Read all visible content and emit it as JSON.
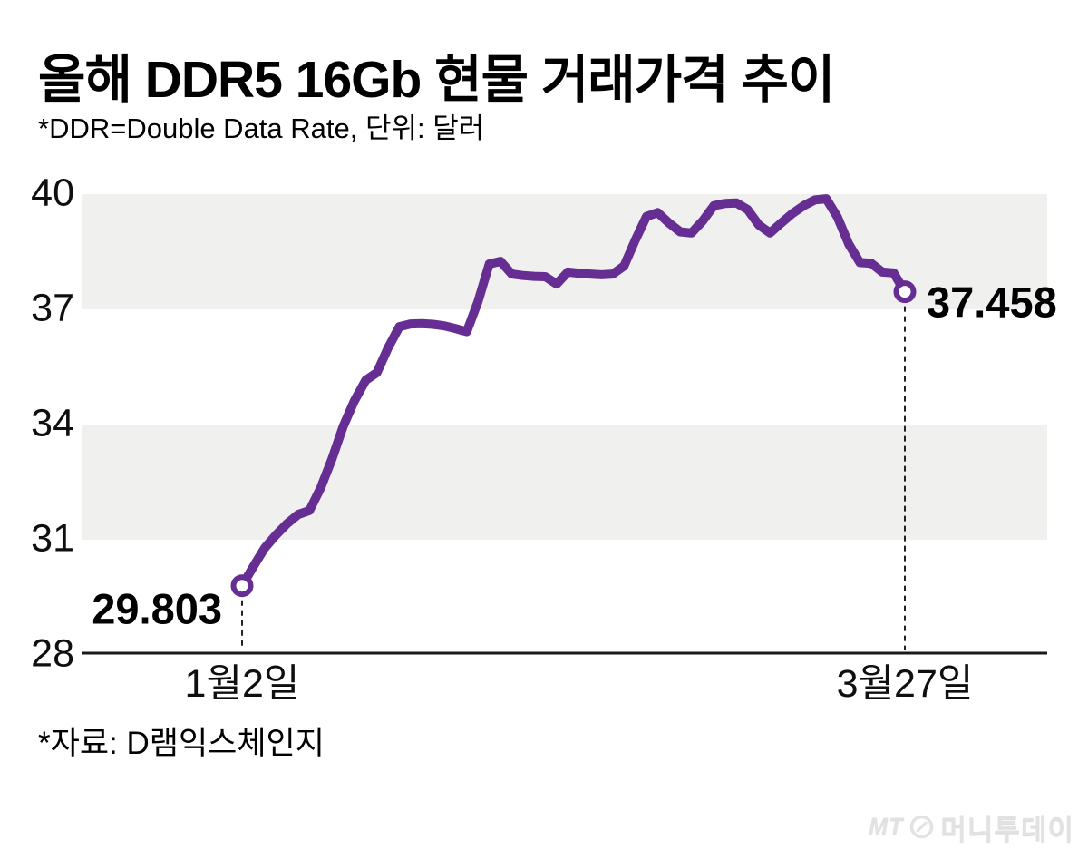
{
  "header": {
    "title": "올해 DDR5 16Gb 현물 거래가격 추이",
    "subtitle": "*DDR=Double Data Rate, 단위: 달러"
  },
  "annotations": {
    "start_label": "29.803",
    "end_label": "37.458"
  },
  "footer": {
    "source": "*자료: D램익스체인지",
    "logo_mt": "MT",
    "logo_name": "머니투데이"
  },
  "colors": {
    "line": "#662e93",
    "band": "#f0f0ef",
    "axis": "#1a1a1a",
    "dash": "#222222",
    "text": "#000000",
    "logo": "#e2e2e2"
  },
  "chart_data": {
    "type": "line",
    "title": "올해 DDR5 16Gb 현물 거래가격 추이",
    "xlabel": "",
    "ylabel": "달러",
    "ylim": [
      28,
      40
    ],
    "y_ticks": [
      40,
      37,
      34,
      31,
      28
    ],
    "x_ticks": [
      {
        "label": "1월2일",
        "index": 0
      },
      {
        "label": "3월27일",
        "index": 59
      }
    ],
    "grid": "alternating horizontal gray bands (40-37 and 34-31)",
    "legend": "none",
    "first_point": {
      "date_label": "1월2일",
      "value": 29.803
    },
    "last_point": {
      "date_label": "3월27일",
      "value": 37.458
    },
    "series": [
      {
        "name": "DDR5 16Gb 현물 거래가격(달러)",
        "values": [
          29.803,
          30.3,
          30.78,
          31.12,
          31.42,
          31.66,
          31.76,
          32.35,
          33.1,
          33.95,
          34.62,
          35.15,
          35.35,
          36.0,
          36.55,
          36.62,
          36.63,
          36.61,
          36.57,
          36.5,
          36.42,
          37.2,
          38.18,
          38.25,
          37.92,
          37.88,
          37.86,
          37.85,
          37.66,
          37.97,
          37.94,
          37.92,
          37.9,
          37.92,
          38.13,
          38.8,
          39.42,
          39.52,
          39.25,
          39.02,
          38.99,
          39.3,
          39.7,
          39.76,
          39.77,
          39.6,
          39.2,
          38.99,
          39.25,
          39.5,
          39.7,
          39.85,
          39.88,
          39.4,
          38.7,
          38.22,
          38.2,
          37.97,
          37.95,
          37.458
        ]
      }
    ]
  }
}
